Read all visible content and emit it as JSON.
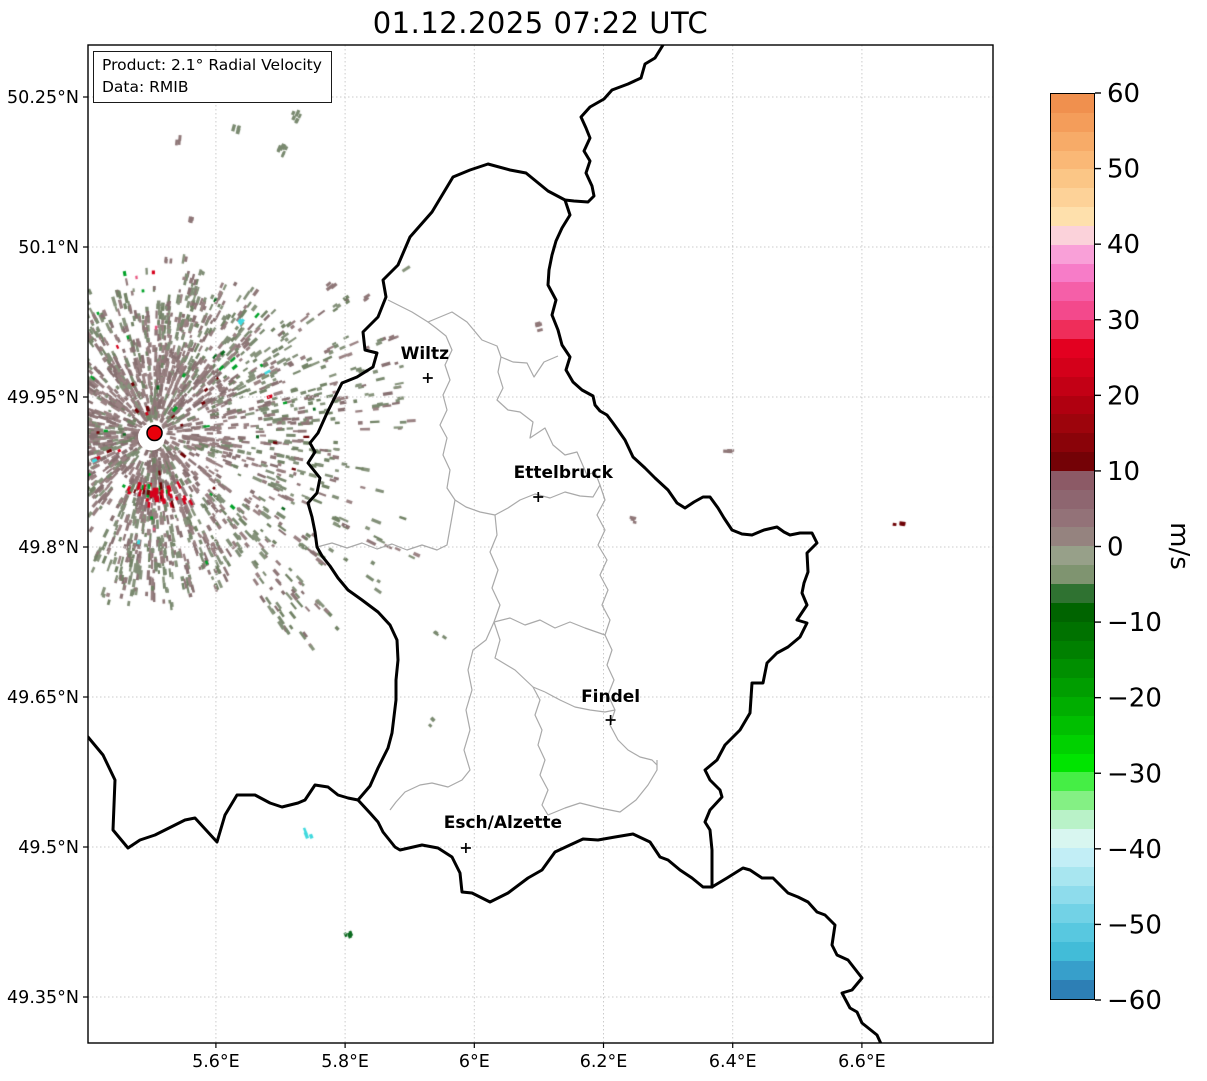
{
  "title": "01.12.2025 07:22 UTC",
  "info_box": {
    "product": "Product: 2.1° Radial Velocity",
    "data": "Data: RMIB"
  },
  "axes": {
    "x_ticks": [
      {
        "label": "5.6°E",
        "lon": 5.6
      },
      {
        "label": "5.8°E",
        "lon": 5.8
      },
      {
        "label": "6°E",
        "lon": 6.0
      },
      {
        "label": "6.2°E",
        "lon": 6.2
      },
      {
        "label": "6.4°E",
        "lon": 6.4
      },
      {
        "label": "6.6°E",
        "lon": 6.6
      }
    ],
    "y_ticks": [
      {
        "label": "50.25°N",
        "lat": 50.25
      },
      {
        "label": "50.1°N",
        "lat": 50.1
      },
      {
        "label": "49.95°N",
        "lat": 49.95
      },
      {
        "label": "49.8°N",
        "lat": 49.8
      },
      {
        "label": "49.65°N",
        "lat": 49.65
      },
      {
        "label": "49.5°N",
        "lat": 49.5
      },
      {
        "label": "49.35°N",
        "lat": 49.35
      }
    ]
  },
  "cities": [
    {
      "name": "Wiltz",
      "lon": 5.928,
      "lat": 49.969
    },
    {
      "name": "Ettelbruck",
      "lon": 6.099,
      "lat": 49.85
    },
    {
      "name": "Findel",
      "lon": 6.211,
      "lat": 49.627
    },
    {
      "name": "Esch/Alzette",
      "lon": 5.987,
      "lat": 49.499
    }
  ],
  "radar": {
    "site_lon": 5.505,
    "site_lat": 49.914,
    "marker_color": "#e8000b"
  },
  "colorbar": {
    "label": "m/s",
    "max": 60,
    "min": -60,
    "band_step": 2.5,
    "ticks": [
      {
        "label": "60",
        "value": 60
      },
      {
        "label": "50",
        "value": 50
      },
      {
        "label": "40",
        "value": 40
      },
      {
        "label": "30",
        "value": 30
      },
      {
        "label": "20",
        "value": 20
      },
      {
        "label": "10",
        "value": 10
      },
      {
        "label": "0",
        "value": 0
      },
      {
        "label": "−10",
        "value": -10
      },
      {
        "label": "−20",
        "value": -20
      },
      {
        "label": "−30",
        "value": -30
      },
      {
        "label": "−40",
        "value": -40
      },
      {
        "label": "−50",
        "value": -50
      },
      {
        "label": "−60",
        "value": -60
      }
    ],
    "palette_top_to_bottom": [
      "#f0904e",
      "#f49d5a",
      "#f7ab68",
      "#fab876",
      "#fbc686",
      "#fdd298",
      "#fee0ac",
      "#fbd2da",
      "#f9a0d8",
      "#f77cc8",
      "#f55fa8",
      "#f3498c",
      "#ef2d5a",
      "#e30020",
      "#d4001a",
      "#c30015",
      "#b00010",
      "#9d040c",
      "#8a0309",
      "#740206",
      "#8c5a66",
      "#8e6670",
      "#937278",
      "#95837f",
      "#97a089",
      "#7f9470",
      "#2f7231",
      "#006400",
      "#007200",
      "#008000",
      "#008f00",
      "#009e00",
      "#00ae00",
      "#00bf00",
      "#00d100",
      "#00e400",
      "#45ee45",
      "#84f084",
      "#b9f2c8",
      "#d8f6f0",
      "#c2eef6",
      "#a8e6f0",
      "#8edcec",
      "#72d2e6",
      "#58c8e0",
      "#42bcd8",
      "#379fcb",
      "#2d7fb5"
    ]
  },
  "field_colors": {
    "mauve": "#8f7778",
    "sage": "#7a8a70",
    "red": "#d6001c",
    "darkred": "#6e0105",
    "green": "#00a228",
    "darkgreen": "#0c6b20",
    "cyan": "#3fd9de",
    "pink": "#e8557f"
  },
  "isolated_patches": [
    {
      "lon": 5.726,
      "lat": 50.23,
      "color": "sage",
      "count": 6
    },
    {
      "lon": 5.634,
      "lat": 50.217,
      "color": "sage",
      "count": 4
    },
    {
      "lon": 5.544,
      "lat": 50.205,
      "color": "mauve",
      "count": 3
    },
    {
      "lon": 5.704,
      "lat": 50.197,
      "color": "sage",
      "count": 8
    },
    {
      "lon": 5.563,
      "lat": 50.126,
      "color": "mauve",
      "count": 3
    },
    {
      "lon": 5.526,
      "lat": 50.085,
      "color": "mauve",
      "count": 3
    },
    {
      "lon": 5.64,
      "lat": 50.024,
      "color": "cyan",
      "count": 2
    },
    {
      "lon": 5.781,
      "lat": 50.06,
      "color": "mauve",
      "count": 4
    },
    {
      "lon": 5.838,
      "lat": 50.047,
      "color": "mauve",
      "count": 3
    },
    {
      "lon": 6.097,
      "lat": 50.02,
      "color": "mauve",
      "count": 4
    },
    {
      "lon": 6.249,
      "lat": 49.825,
      "color": "mauve",
      "count": 3
    },
    {
      "lon": 6.396,
      "lat": 49.894,
      "color": "mauve",
      "count": 3
    },
    {
      "lon": 6.656,
      "lat": 49.824,
      "color": "darkred",
      "count": 3
    },
    {
      "lon": 5.947,
      "lat": 49.71,
      "color": "sage",
      "count": 3
    },
    {
      "lon": 5.938,
      "lat": 49.624,
      "color": "sage",
      "count": 2
    },
    {
      "lon": 5.743,
      "lat": 49.512,
      "color": "cyan",
      "count": 3
    },
    {
      "lon": 5.804,
      "lat": 49.415,
      "color": "darkgreen",
      "count": 4
    }
  ]
}
